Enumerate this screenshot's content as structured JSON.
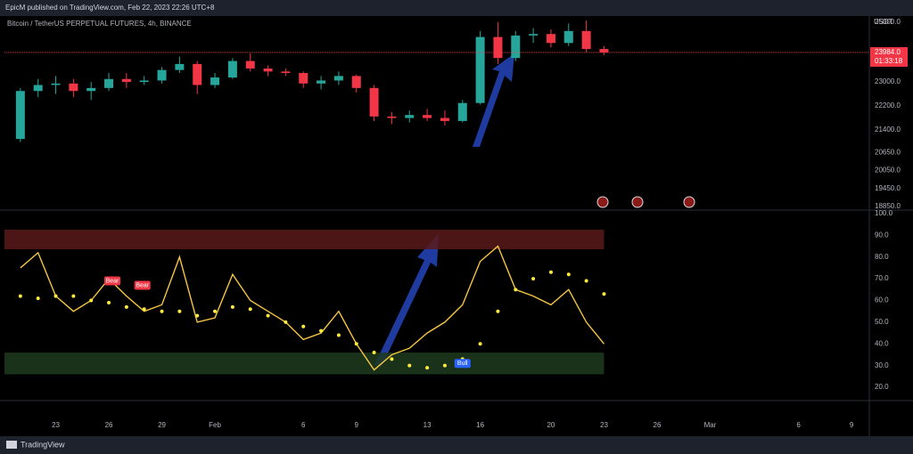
{
  "header": "EpicM published on TradingView.com, Feb 22, 2023 22:26 UTC+8",
  "footer": "TradingView",
  "chart_data": [
    {
      "type": "candlestick",
      "title": "Bitcoin / TetherUS PERPETUAL FUTURES, 4h, BINANCE",
      "axis_unit": "USDT",
      "up_color": "#26a69a",
      "down_color": "#f23645",
      "x": [
        21,
        22,
        23,
        24,
        25,
        26,
        27,
        28,
        29,
        30,
        31,
        32,
        33,
        34,
        35,
        36,
        37,
        38,
        39,
        40,
        41,
        42,
        43,
        44,
        45,
        46,
        47,
        48,
        49,
        50,
        51,
        52,
        53,
        54
      ],
      "open": [
        21100,
        22700,
        22900,
        22950,
        22700,
        22800,
        23100,
        23000,
        23050,
        23400,
        23600,
        22900,
        23150,
        23700,
        23450,
        23350,
        23300,
        22950,
        23050,
        23200,
        22800,
        21850,
        21800,
        21900,
        21800,
        21700,
        22300,
        24500,
        23800,
        24550,
        24600,
        24300,
        24700,
        24100
      ],
      "high": [
        22800,
        23100,
        23200,
        23100,
        23000,
        23300,
        23300,
        23200,
        23500,
        23850,
        23700,
        23300,
        23800,
        23950,
        23550,
        23450,
        23350,
        23200,
        23350,
        23250,
        22900,
        22000,
        22050,
        22100,
        22050,
        22400,
        24700,
        25000,
        24700,
        24800,
        24750,
        24950,
        25050,
        24200
      ],
      "low": [
        21000,
        22500,
        22600,
        22500,
        22400,
        22700,
        22800,
        22900,
        22950,
        23300,
        22600,
        22800,
        23100,
        23350,
        23200,
        23200,
        22800,
        22750,
        22900,
        22650,
        21700,
        21600,
        21650,
        21700,
        21550,
        21650,
        22250,
        23600,
        23700,
        24300,
        24150,
        24200,
        24000,
        23900
      ],
      "close": [
        22700,
        22900,
        22950,
        22700,
        22800,
        23100,
        23000,
        23050,
        23400,
        23600,
        22900,
        23150,
        23700,
        23450,
        23350,
        23300,
        22950,
        23050,
        23200,
        22800,
        21850,
        21800,
        21900,
        21800,
        21700,
        22300,
        24500,
        23800,
        24550,
        24600,
        24300,
        24700,
        24100,
        23984
      ],
      "last_price": {
        "value": 23984,
        "label": "23984.0",
        "color": "#f23645"
      },
      "countdown": "01:33:18",
      "ylim": [
        18760,
        25140
      ],
      "yticks": [
        {
          "value": 25000,
          "label": "25000.0"
        },
        {
          "value": 23000,
          "label": "23000.0"
        },
        {
          "value": 22200,
          "label": "22200.0"
        },
        {
          "value": 21400,
          "label": "21400.0"
        },
        {
          "value": 20650,
          "label": "20650.0"
        },
        {
          "value": 20050,
          "label": "20050.0"
        },
        {
          "value": 19450,
          "label": "19450.0"
        },
        {
          "value": 18850,
          "label": "18850.0"
        }
      ],
      "grid": false
    },
    {
      "type": "line",
      "x": [
        21,
        22,
        23,
        24,
        25,
        26,
        27,
        28,
        29,
        30,
        31,
        32,
        33,
        34,
        35,
        36,
        37,
        38,
        39,
        40,
        41,
        42,
        43,
        44,
        45,
        46,
        47,
        48,
        49,
        50,
        51,
        52,
        53,
        54
      ],
      "series": [
        {
          "color": "#f5c542",
          "style": "line",
          "values": [
            75,
            82,
            62,
            55,
            60,
            70,
            62,
            55,
            58,
            80,
            50,
            52,
            72,
            60,
            55,
            50,
            42,
            45,
            55,
            40,
            28,
            35,
            38,
            45,
            50,
            58,
            78,
            85,
            65,
            62,
            58,
            65,
            50,
            40
          ]
        },
        {
          "color": "#ffeb3b",
          "style": "dots",
          "values": [
            62,
            61,
            62,
            62,
            60,
            59,
            57,
            56,
            55,
            55,
            53,
            55,
            57,
            56,
            53,
            50,
            48,
            46,
            44,
            40,
            36,
            33,
            30,
            29,
            30,
            33,
            40,
            55,
            65,
            70,
            73,
            72,
            69,
            63
          ]
        }
      ],
      "zones": [
        {
          "color": "#5b1a1a",
          "lower": 83.6,
          "upper": 92.6
        },
        {
          "color": "#1e3a1e",
          "lower": 26,
          "upper": 36
        }
      ],
      "annotations": [
        {
          "text": "Bear",
          "x": 26.2,
          "y": 69,
          "color": "#f23645"
        },
        {
          "text": "Bear",
          "x": 27.9,
          "y": 67,
          "color": "#f23645"
        },
        {
          "text": "Bull",
          "x": 46,
          "y": 31,
          "color": "#2962ff"
        }
      ],
      "xlim": [
        20.1,
        69
      ],
      "xticks": [
        23,
        26,
        29,
        {
          "value": 32,
          "label": "Feb"
        },
        {
          "value": 37,
          "label": "6"
        },
        {
          "value": 40,
          "label": "9"
        },
        {
          "value": 44,
          "label": "13"
        },
        {
          "value": 47,
          "label": "16"
        },
        {
          "value": 51,
          "label": "20"
        },
        {
          "value": 54,
          "label": "23"
        },
        {
          "value": 57,
          "label": "26"
        },
        {
          "value": 60,
          "label": "Mar"
        },
        {
          "value": 65,
          "label": "6"
        },
        {
          "value": 68,
          "label": "9"
        }
      ],
      "ylim": [
        14.7,
        100.8
      ],
      "yticks": [
        {
          "value": 100,
          "label": "100.0"
        },
        {
          "value": 90,
          "label": "90.0"
        },
        {
          "value": 80,
          "label": "80.0"
        },
        {
          "value": 70,
          "label": "70.0"
        },
        {
          "value": 60,
          "label": "60.0"
        },
        {
          "value": 50,
          "label": "50.0"
        },
        {
          "value": 40,
          "label": "40.0"
        },
        {
          "value": 30,
          "label": "30.0"
        },
        {
          "value": 20,
          "label": "20.0"
        }
      ],
      "grid": false
    }
  ]
}
